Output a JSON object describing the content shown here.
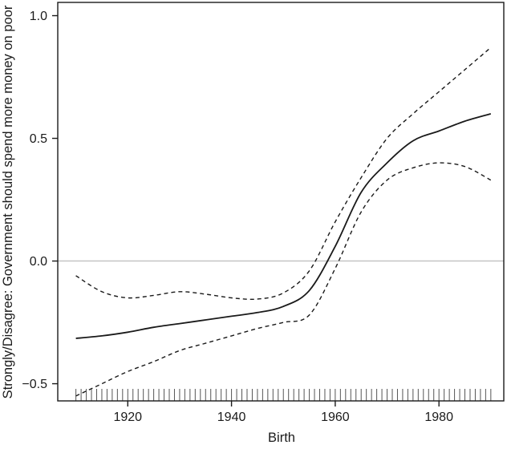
{
  "figure": {
    "background": "#ffffff",
    "frame_color": "#1a1a1a",
    "curve_color": "#1a1a1a",
    "reference_line_color": "#c4c4c4",
    "rug_color": "#555555"
  },
  "chart_data": {
    "type": "line",
    "title": "",
    "xlabel": "Birth",
    "ylabel": "Strongly/Disagree: Government should spend more money on poor",
    "x": [
      1910,
      1915,
      1920,
      1925,
      1930,
      1935,
      1940,
      1945,
      1950,
      1955,
      1960,
      1965,
      1970,
      1975,
      1980,
      1985,
      1990
    ],
    "series": [
      {
        "name": "smoothed-fit",
        "style": "solid",
        "values": [
          -0.315,
          -0.305,
          -0.29,
          -0.27,
          -0.255,
          -0.24,
          -0.225,
          -0.21,
          -0.185,
          -0.12,
          0.06,
          0.28,
          0.4,
          0.49,
          0.53,
          0.57,
          0.6
        ]
      },
      {
        "name": "upper-confidence-band",
        "style": "dashed",
        "values": [
          -0.06,
          -0.125,
          -0.15,
          -0.14,
          -0.125,
          -0.135,
          -0.15,
          -0.155,
          -0.13,
          -0.04,
          0.16,
          0.34,
          0.5,
          0.6,
          0.69,
          0.78,
          0.87
        ]
      },
      {
        "name": "lower-confidence-band",
        "style": "dashed",
        "values": [
          -0.55,
          -0.5,
          -0.45,
          -0.41,
          -0.365,
          -0.335,
          -0.305,
          -0.275,
          -0.25,
          -0.22,
          -0.03,
          0.2,
          0.33,
          0.38,
          0.4,
          0.385,
          0.33
        ]
      }
    ],
    "reference_line_y": 0,
    "x_ticks": {
      "values": [
        1920,
        1940,
        1960,
        1980
      ],
      "labels": [
        "1920",
        "1940",
        "1960",
        "1980"
      ]
    },
    "y_ticks": {
      "values": [
        1.0,
        0.5,
        0.0,
        -0.5
      ],
      "labels": [
        "1.0",
        "0.5",
        "0.0",
        "−0.5"
      ]
    },
    "x_range": [
      1906.5,
      1992.5
    ],
    "y_range": [
      -0.57,
      1.054
    ],
    "rug": {
      "start": 1910,
      "end": 1990,
      "step": 1
    },
    "grid": "off",
    "legend": "none"
  }
}
